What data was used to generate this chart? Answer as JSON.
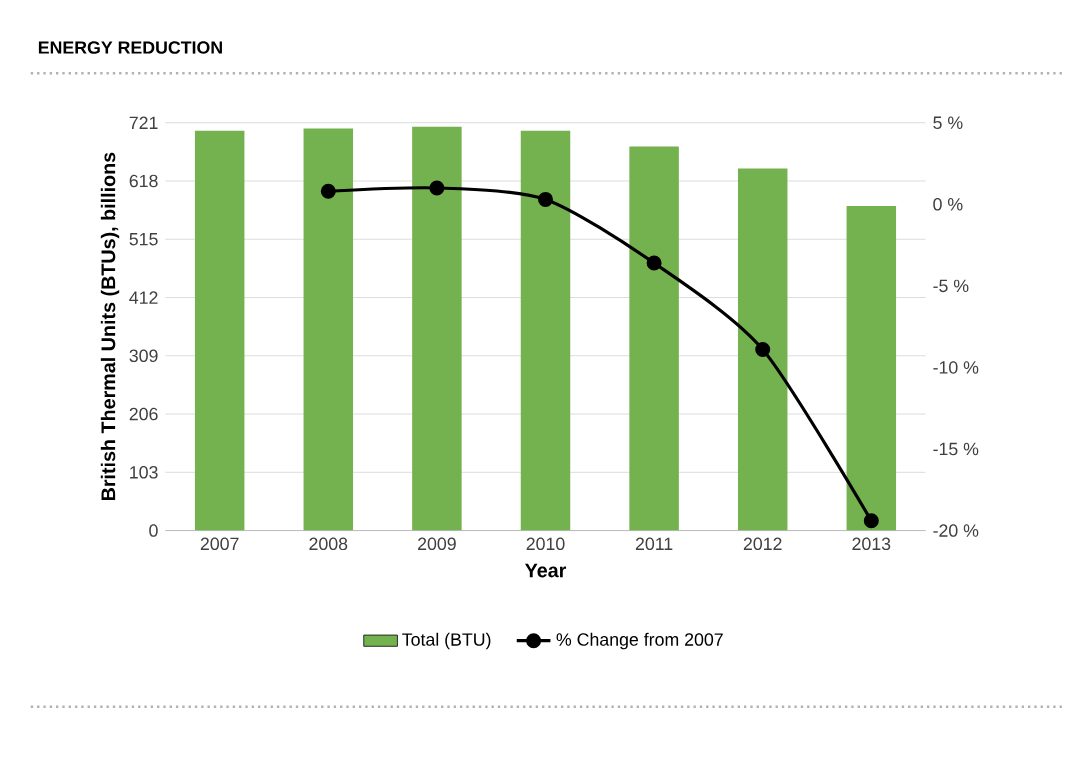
{
  "chart_data": {
    "type": "bar",
    "title": "ENERGY REDUCTION",
    "xlabel": "Year",
    "ylabel": "British Thermal Units (BTUs), billions",
    "categories": [
      "2007",
      "2008",
      "2009",
      "2010",
      "2011",
      "2012",
      "2013"
    ],
    "series": [
      {
        "name": "Total (BTU)",
        "color": "#74b14f",
        "values": [
          707,
          711,
          714,
          707,
          679,
          640,
          574
        ]
      },
      {
        "name": "% Change from 2007",
        "type": "line",
        "axis": "y2",
        "color": "#000000",
        "values": [
          null,
          0.8,
          1.0,
          0.3,
          -3.6,
          -8.9,
          -19.4
        ]
      }
    ],
    "ylim": [
      0,
      721
    ],
    "yticks": [
      0,
      103,
      206,
      309,
      412,
      515,
      618,
      721
    ],
    "y2lim": [
      -20,
      5
    ],
    "y2ticks": [
      {
        "value": 5,
        "label": "5 %"
      },
      {
        "value": 0,
        "label": "0 %"
      },
      {
        "value": -5,
        "label": "-5 %"
      },
      {
        "value": -10,
        "label": "-10 %"
      },
      {
        "value": -15,
        "label": "-15 %"
      },
      {
        "value": -20,
        "label": "-20 %"
      }
    ],
    "grid": "y",
    "legend": "bottom",
    "marker": "circle"
  }
}
